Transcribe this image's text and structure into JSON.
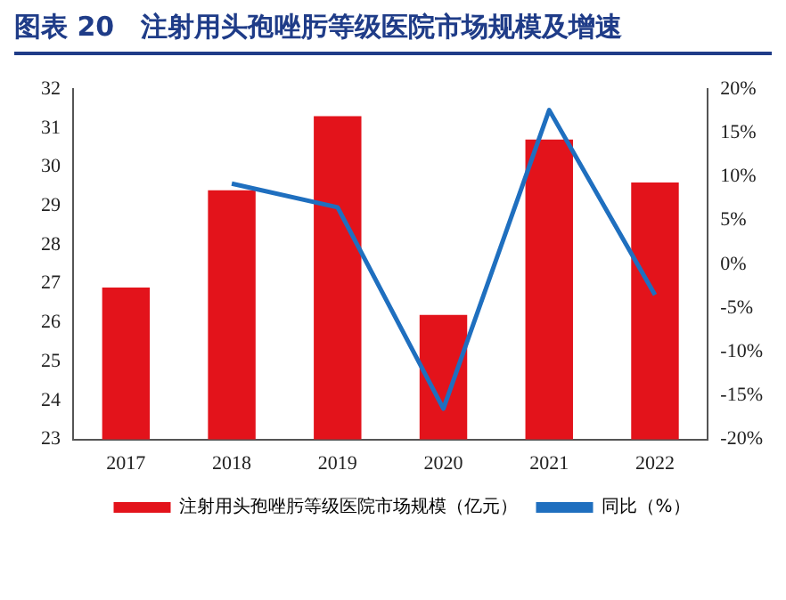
{
  "chart_data": {
    "type": "bar",
    "title": "图表 20　注射用头孢唑肟等级医院市场规模及增速",
    "categories": [
      "2017",
      "2018",
      "2019",
      "2020",
      "2021",
      "2022"
    ],
    "series": [
      {
        "name": "注射用头孢唑肟等级医院市场规模（亿元）",
        "color": "#e3131b",
        "values": [
          26.9,
          29.4,
          31.3,
          26.2,
          30.7,
          29.6
        ]
      },
      {
        "name": "同比（%）",
        "type": "line",
        "axis": "y2",
        "color": "#1f6fbf",
        "values": [
          null,
          9.2,
          6.5,
          -16.5,
          17.6,
          -3.5
        ]
      }
    ],
    "ylim": [
      23,
      32
    ],
    "yticks": [
      23,
      24,
      25,
      26,
      27,
      28,
      29,
      30,
      31,
      32
    ],
    "y2lim": [
      -20,
      20
    ],
    "y2ticks": [
      {
        "value": -20,
        "label": "-20%"
      },
      {
        "value": -15,
        "label": "-15%"
      },
      {
        "value": -10,
        "label": "-10%"
      },
      {
        "value": -5,
        "label": "-5%"
      },
      {
        "value": 0,
        "label": "0%"
      },
      {
        "value": 5,
        "label": "5%"
      },
      {
        "value": 10,
        "label": "10%"
      },
      {
        "value": 15,
        "label": "15%"
      },
      {
        "value": 20,
        "label": "20%"
      }
    ],
    "legend": "bottom",
    "marker": "none",
    "line_style": "solid"
  }
}
